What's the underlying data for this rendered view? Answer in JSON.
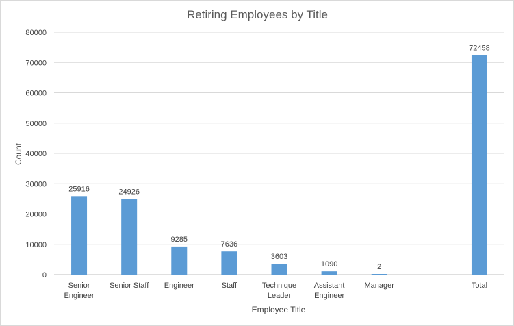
{
  "chart_data": {
    "type": "bar",
    "title": "Retiring Employees by Title",
    "xlabel": "Employee Title",
    "ylabel": "Count",
    "ylim": [
      0,
      80000
    ],
    "yticks": [
      0,
      10000,
      20000,
      30000,
      40000,
      50000,
      60000,
      70000,
      80000
    ],
    "grid": true,
    "legend": "none",
    "bar_color": "#5b9bd5",
    "categories": [
      [
        "Senior",
        "Engineer"
      ],
      [
        "Senior Staff"
      ],
      [
        "Engineer"
      ],
      [
        "Staff"
      ],
      [
        "Technique",
        "Leader"
      ],
      [
        "Assistant",
        "Engineer"
      ],
      [
        "Manager"
      ],
      [
        ""
      ],
      [
        "Total"
      ]
    ],
    "values": [
      25916,
      24926,
      9285,
      7636,
      3603,
      1090,
      2,
      null,
      72458
    ],
    "data_labels": [
      "25916",
      "24926",
      "9285",
      "7636",
      "3603",
      "1090",
      "2",
      "",
      "72458"
    ]
  }
}
